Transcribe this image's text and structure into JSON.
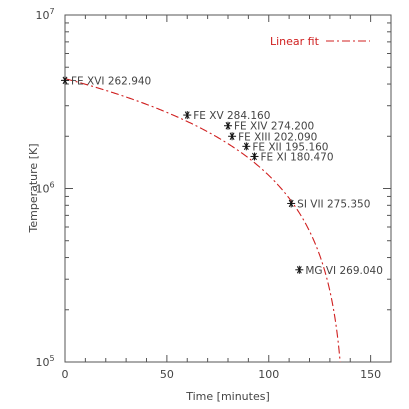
{
  "chart_data": {
    "type": "scatter",
    "title": "",
    "xlabel": "Time [minutes]",
    "ylabel": "Temperature [K]",
    "xlim": [
      0,
      160
    ],
    "ylim": [
      100000,
      10000000
    ],
    "yscale": "log",
    "grid": false,
    "legend_position": "top-right",
    "legend": [
      {
        "name": "Linear fit",
        "style": "dash-dot",
        "color": "#d02020"
      }
    ],
    "x_ticks": [
      {
        "value": 0,
        "label": "0"
      },
      {
        "value": 50,
        "label": "50"
      },
      {
        "value": 100,
        "label": "100"
      },
      {
        "value": 150,
        "label": "150"
      }
    ],
    "y_ticks": [
      {
        "value": 100000,
        "base": "10",
        "exp": "5"
      },
      {
        "value": 1000000,
        "base": "10",
        "exp": "6"
      },
      {
        "value": 10000000,
        "base": "10",
        "exp": "7"
      }
    ],
    "points": [
      {
        "label": "FE XVI 262.940",
        "x": 0,
        "y": 4200000
      },
      {
        "label": "FE XV 284.160",
        "x": 60,
        "y": 2650000
      },
      {
        "label": "FE XIV 274.200",
        "x": 80,
        "y": 2300000
      },
      {
        "label": "FE XIII 202.090",
        "x": 82,
        "y": 2000000
      },
      {
        "label": "FE XII 195.160",
        "x": 89,
        "y": 1750000
      },
      {
        "label": "FE XI 180.470",
        "x": 93,
        "y": 1530000
      },
      {
        "label": "SI VII 275.350",
        "x": 111,
        "y": 820000
      },
      {
        "label": "MG VI 269.040",
        "x": 115,
        "y": 340000
      }
    ],
    "fit_line": {
      "name": "Linear fit",
      "color": "#d02020",
      "intercept": 4300000,
      "slope": -31100
    }
  }
}
